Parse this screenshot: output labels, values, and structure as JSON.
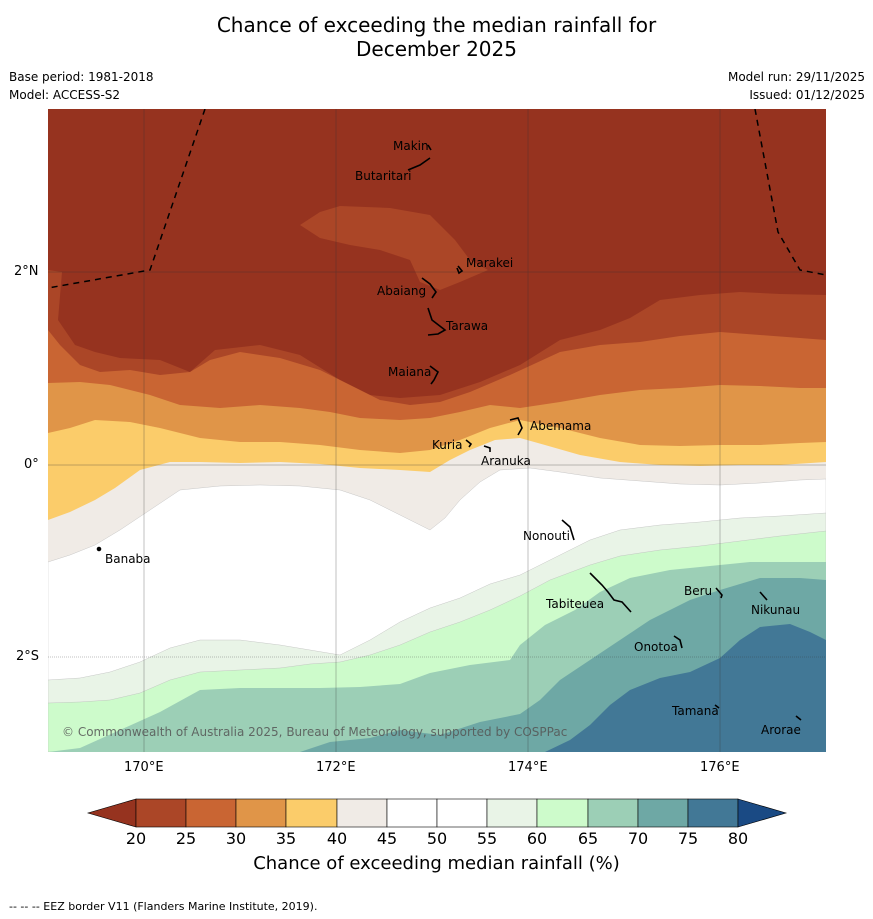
{
  "title": {
    "line1": "Chance of exceeding the median rainfall for",
    "line2": "December 2025"
  },
  "meta": {
    "base_period": "Base period: 1981-2018",
    "model": "Model: ACCESS-S2",
    "model_run": "Model run: 29/11/2025",
    "issued": "Issued: 01/12/2025"
  },
  "axes": {
    "lat_labels": [
      "2°N",
      "0°",
      "2°S"
    ],
    "lon_labels": [
      "170°E",
      "172°E",
      "174°E",
      "176°E"
    ]
  },
  "places": [
    {
      "name": "Makin"
    },
    {
      "name": "Butaritari"
    },
    {
      "name": "Marakei"
    },
    {
      "name": "Abaiang"
    },
    {
      "name": "Tarawa"
    },
    {
      "name": "Maiana"
    },
    {
      "name": "Abemama"
    },
    {
      "name": "Kuria"
    },
    {
      "name": "Aranuka"
    },
    {
      "name": "Nonouti"
    },
    {
      "name": "Banaba"
    },
    {
      "name": "Beru"
    },
    {
      "name": "Tabiteuea"
    },
    {
      "name": "Nikunau"
    },
    {
      "name": "Onotoa"
    },
    {
      "name": "Tamana"
    },
    {
      "name": "Arorae"
    }
  ],
  "copyright": "© Commonwealth of Australia 2025, Bureau of Meteorology, supported by COSPPac",
  "colorbar": {
    "ticks": [
      "20",
      "25",
      "30",
      "35",
      "40",
      "45",
      "50",
      "55",
      "60",
      "65",
      "70",
      "75",
      "80"
    ],
    "colors": {
      "lt20": "#96331f",
      "c20": "#ab4627",
      "c25": "#c96533",
      "c30": "#e09548",
      "c35": "#fbcc6a",
      "c40": "#f0ebe6",
      "c45": "#ffffff",
      "c50": "#ffffff",
      "c55": "#e9f4e7",
      "c60": "#cdfbcb",
      "c65": "#9ccfb6",
      "c70": "#6ea8a5",
      "c75": "#427896",
      "gt80": "#1a4a84"
    },
    "title": "Chance of exceeding median rainfall (%)"
  },
  "footer": "-- -- -- EEZ border V11 (Flanders Marine Institute, 2019)."
}
